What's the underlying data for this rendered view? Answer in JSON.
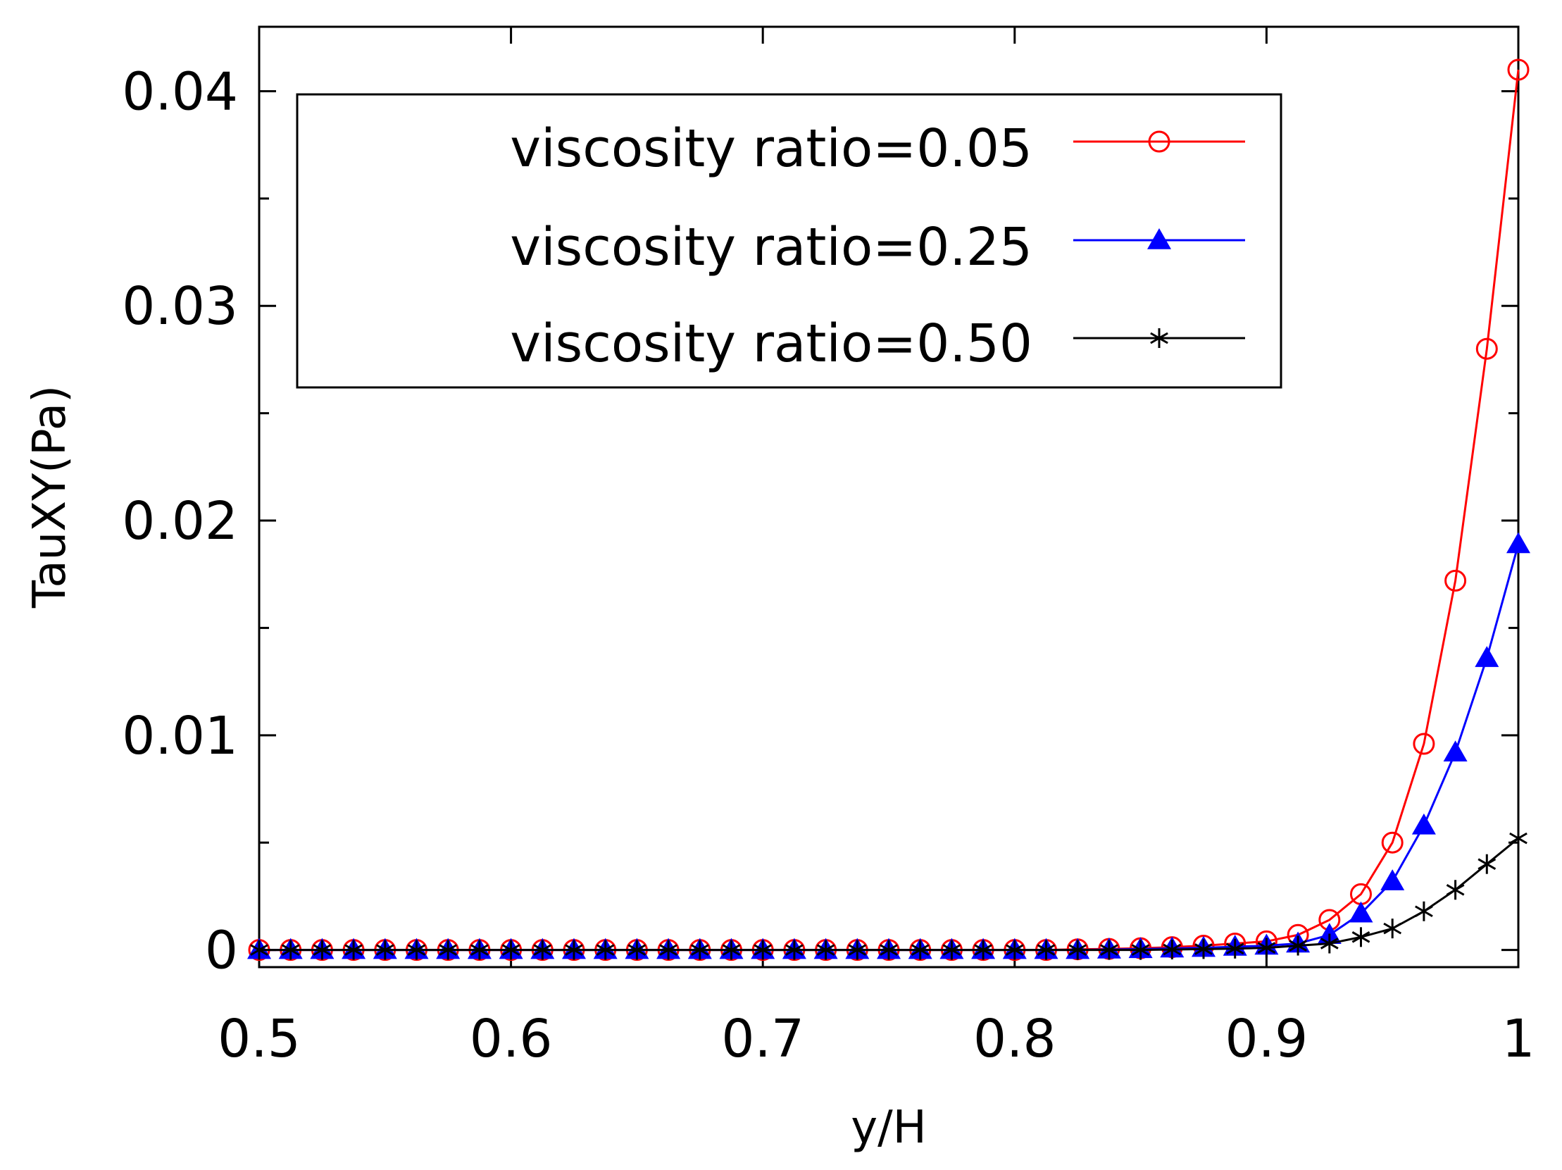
{
  "chart_data": {
    "type": "line",
    "title": "",
    "xlabel": "y/H",
    "ylabel": "TauXY(Pa)",
    "xlim": [
      0.5,
      1
    ],
    "ylim": [
      -0.0008,
      0.043
    ],
    "xticks": [
      0.5,
      0.6,
      0.7,
      0.8,
      0.9,
      1
    ],
    "xtick_labels": [
      "0.5",
      "0.6",
      "0.7",
      "0.8",
      "0.9",
      "1"
    ],
    "yticks": [
      0,
      0.01,
      0.02,
      0.03,
      0.04
    ],
    "ytick_labels": [
      "0",
      "0.01",
      "0.02",
      "0.03",
      "0.04"
    ],
    "yminor_ticks": [
      0.005,
      0.015,
      0.025,
      0.035
    ],
    "grid": false,
    "legend_position": "top",
    "x": [
      0.5,
      0.5125,
      0.525,
      0.5375,
      0.55,
      0.5625,
      0.575,
      0.5875,
      0.6,
      0.6125,
      0.625,
      0.6375,
      0.65,
      0.6625,
      0.675,
      0.6875,
      0.7,
      0.7125,
      0.725,
      0.7375,
      0.75,
      0.7625,
      0.775,
      0.7875,
      0.8,
      0.8125,
      0.825,
      0.8375,
      0.85,
      0.8625,
      0.875,
      0.8875,
      0.9,
      0.9125,
      0.925,
      0.9375,
      0.95,
      0.9625,
      0.975,
      0.9875,
      1.0
    ],
    "series": [
      {
        "name": "viscosity ratio=0.05",
        "color": "#ff0000",
        "marker": "open-circle",
        "values": [
          0,
          0,
          0,
          0,
          0,
          0,
          0,
          0,
          0,
          0,
          0,
          0,
          0,
          0,
          0,
          0,
          0,
          0,
          0,
          0,
          0,
          0,
          0,
          0,
          0,
          0,
          3e-05,
          5e-05,
          8e-05,
          0.00013,
          0.0002,
          0.0003,
          0.0004,
          0.0007,
          0.0014,
          0.0026,
          0.005,
          0.0096,
          0.0172,
          0.028,
          0.041
        ]
      },
      {
        "name": "viscosity ratio=0.25",
        "color": "#0000ff",
        "marker": "filled-triangle",
        "values": [
          0,
          0,
          0,
          0,
          0,
          0,
          0,
          0,
          0,
          0,
          0,
          0,
          0,
          0,
          0,
          0,
          0,
          0,
          0,
          0,
          0,
          0,
          0,
          0,
          0,
          0,
          0,
          2e-05,
          4e-05,
          7e-05,
          0.0001,
          0.00015,
          0.0002,
          0.0003,
          0.0007,
          0.0017,
          0.0032,
          0.0058,
          0.0092,
          0.0136,
          0.0189
        ]
      },
      {
        "name": "viscosity ratio=0.50",
        "color": "#000000",
        "marker": "asterisk",
        "values": [
          0,
          0,
          0,
          0,
          0,
          0,
          0,
          0,
          0,
          0,
          0,
          0,
          0,
          0,
          0,
          0,
          0,
          0,
          0,
          0,
          0,
          0,
          0,
          0,
          0,
          0,
          0,
          0,
          0,
          2e-05,
          4e-05,
          6e-05,
          0.0001,
          0.0002,
          0.0003,
          0.0006,
          0.001,
          0.0018,
          0.0028,
          0.004,
          0.0052
        ]
      }
    ]
  }
}
